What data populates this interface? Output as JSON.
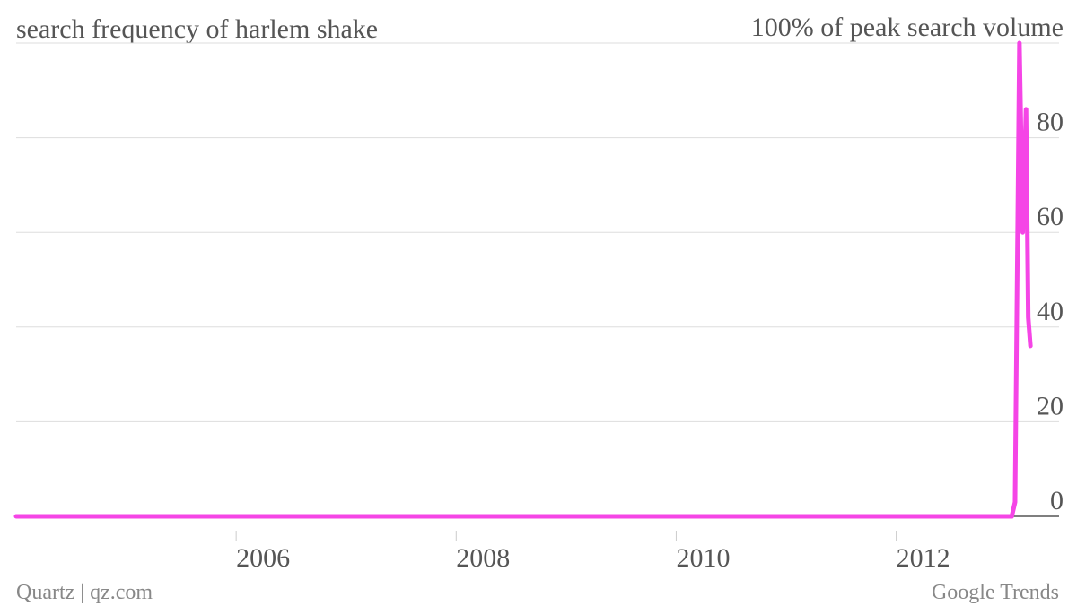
{
  "chart_data": {
    "type": "line",
    "title": "search frequency of harlem shake",
    "source": "Google Trends",
    "credit": "Quartz | qz.com",
    "x": [
      2004,
      2013.05,
      2013.08,
      2013.12,
      2013.15,
      2013.18,
      2013.2,
      2013.22
    ],
    "series": [
      {
        "name": "harlem shake",
        "color": "#f545e6",
        "values": [
          0,
          0,
          3,
          100,
          60,
          86,
          42,
          36
        ]
      }
    ],
    "xlim": [
      2004,
      2013.48
    ],
    "xticks": [
      2006,
      2008,
      2010,
      2012
    ],
    "ylim": [
      0,
      100
    ],
    "yticks": [
      0,
      20,
      40,
      60,
      80,
      {
        "value": 100,
        "label": "100% of peak search volume"
      }
    ],
    "grid": true
  }
}
